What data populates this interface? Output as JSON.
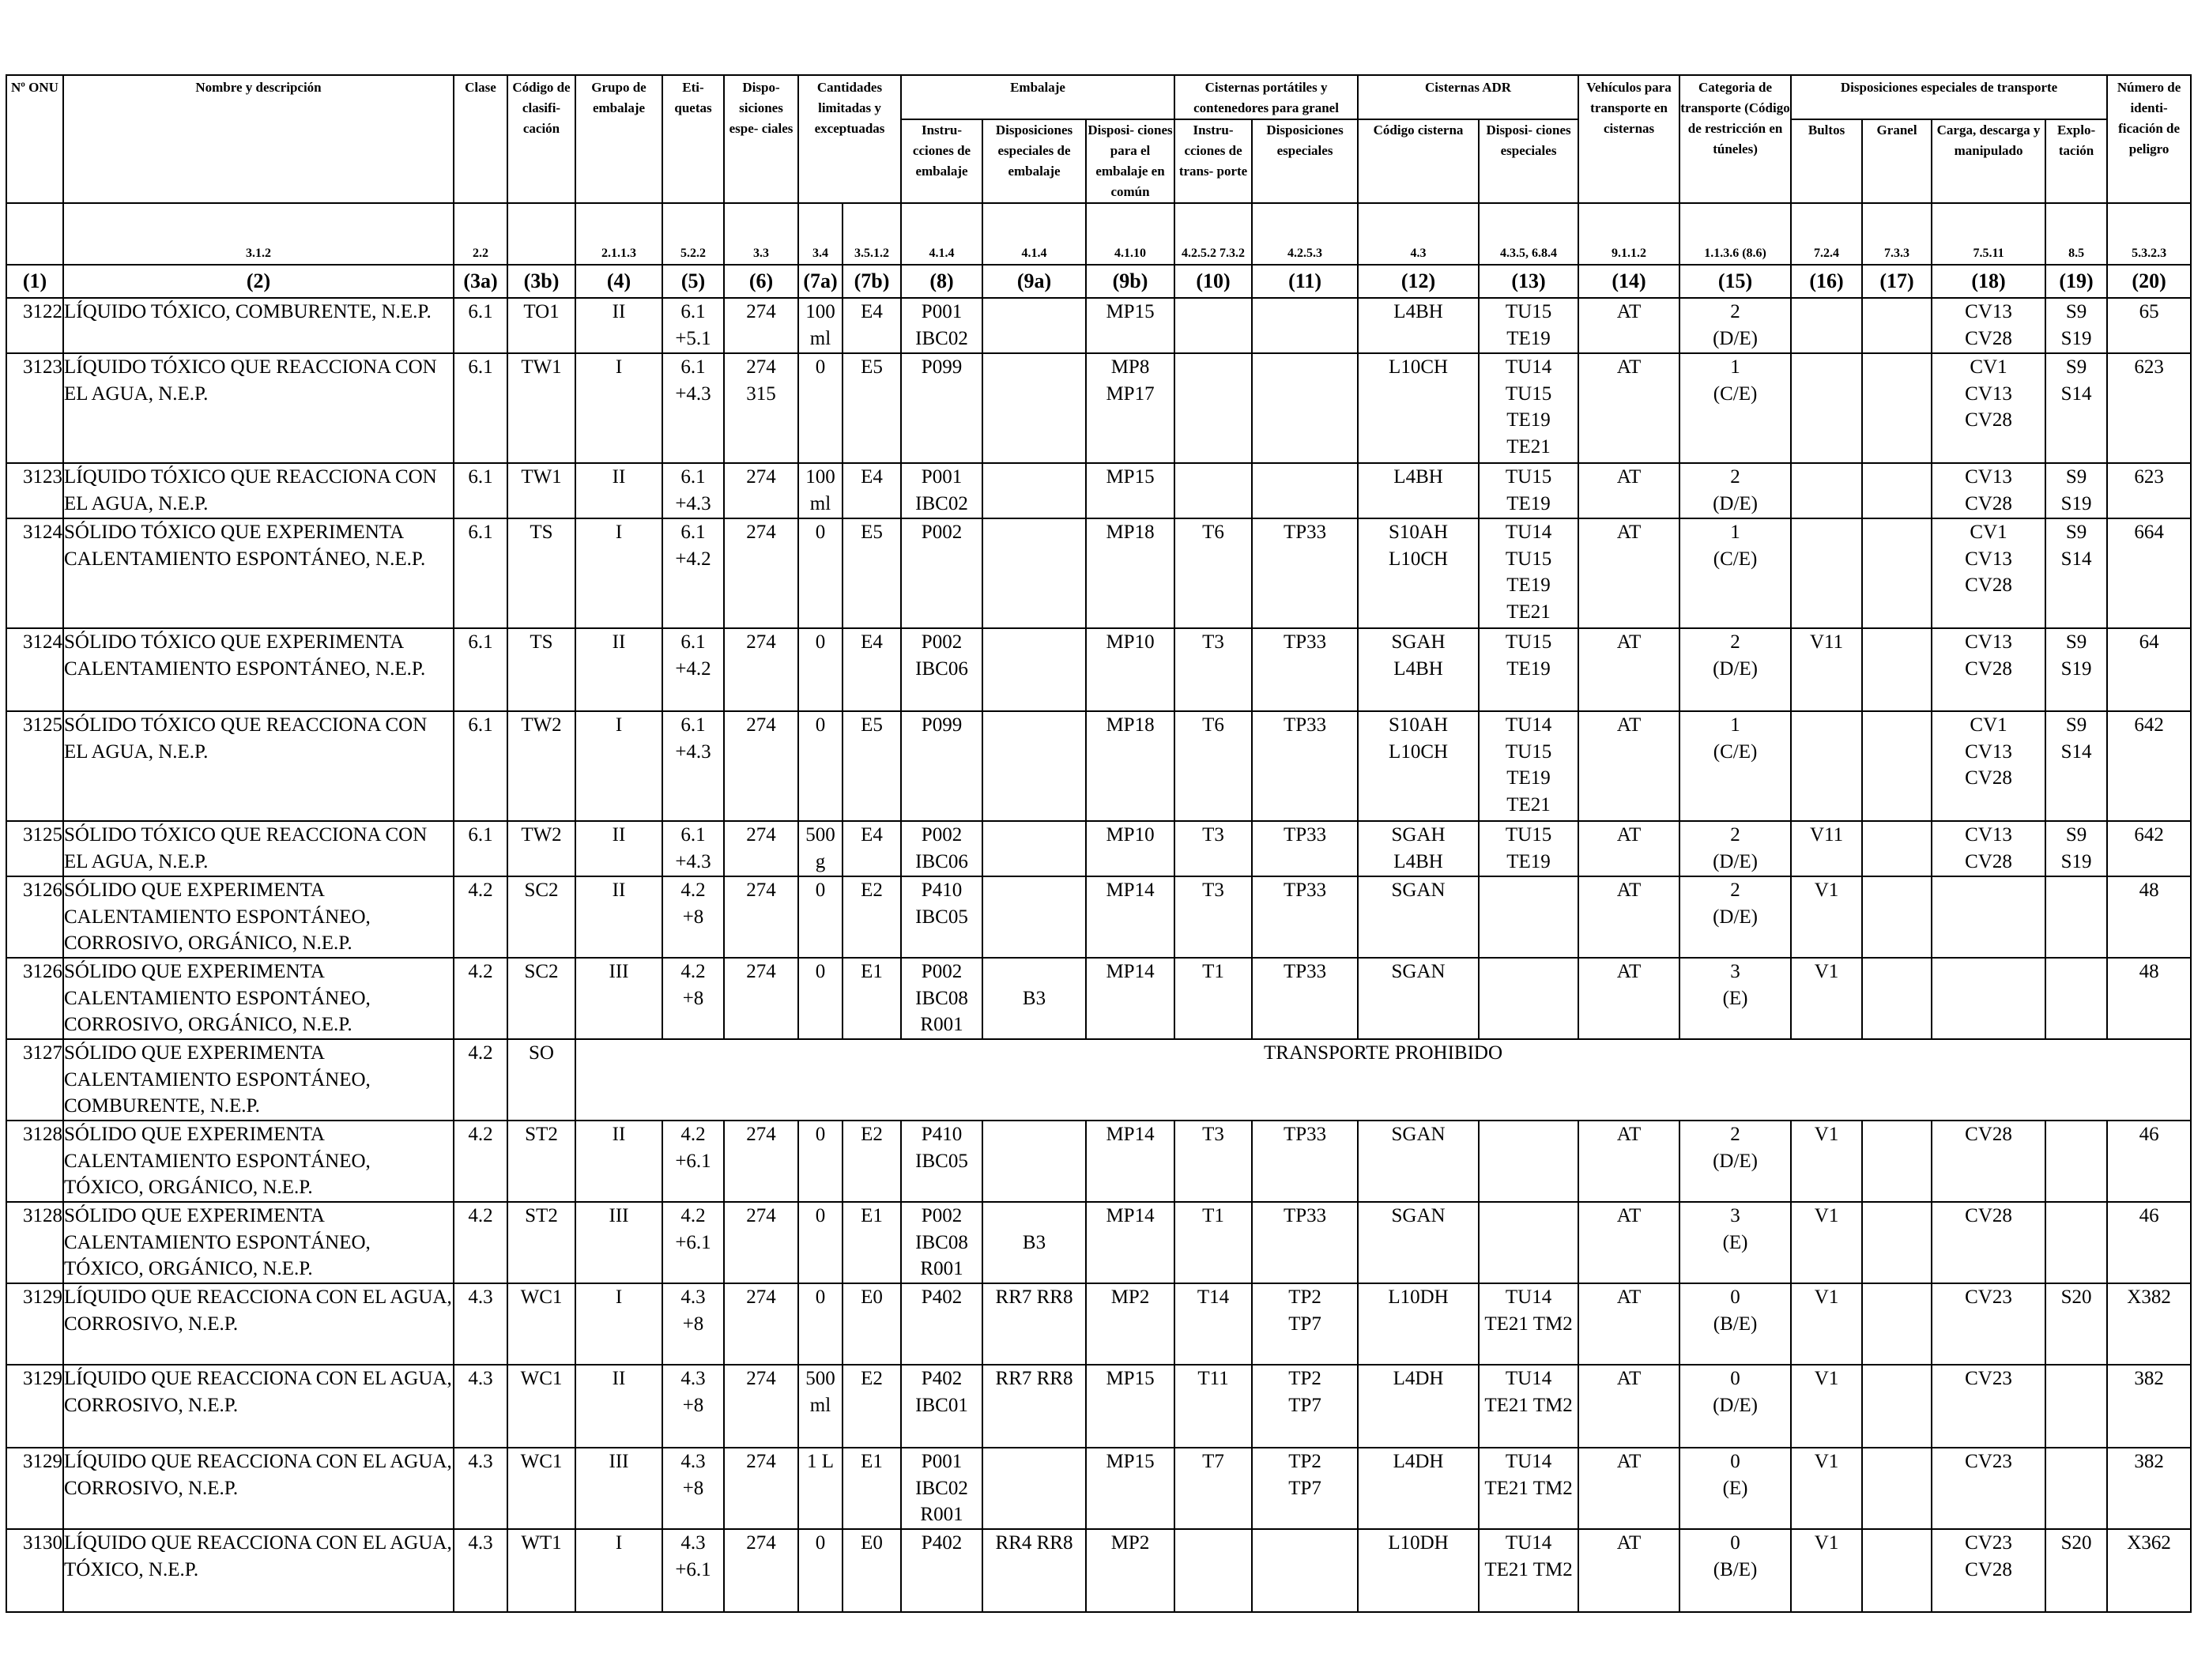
{
  "header": {
    "top": [
      {
        "id": "onu",
        "text": "Nº ONU"
      },
      {
        "id": "name",
        "text": "Nombre y descripción"
      },
      {
        "id": "clase",
        "text": "Clase"
      },
      {
        "id": "codigo",
        "text": "Código de clasifi- cación"
      },
      {
        "id": "grupo",
        "text": "Grupo de embalaje"
      },
      {
        "id": "etiquetas",
        "text": "Eti- quetas"
      },
      {
        "id": "dispos",
        "text": "Dispo- siciones espe- ciales"
      },
      {
        "id": "cantidades",
        "text": "Cantidades limitadas y exceptuadas"
      },
      {
        "id": "embalaje",
        "text": "Embalaje"
      },
      {
        "id": "cisternas_port",
        "text": "Cisternas portátiles y contenedores para granel"
      },
      {
        "id": "cisternas_adr",
        "text": "Cisternas ADR"
      },
      {
        "id": "vehiculos",
        "text": "Vehículos para transporte en cisternas"
      },
      {
        "id": "categoria",
        "text": "Categoria de transporte (Código de restricción en túneles)"
      },
      {
        "id": "dispos_transp",
        "text": "Disposiciones especiales de transporte"
      },
      {
        "id": "numero",
        "text": "Número de identi- ficación de peligro"
      }
    ],
    "sub": [
      {
        "id": "instr_emb",
        "text": "Instru- cciones de embalaje"
      },
      {
        "id": "dispos_emb",
        "text": "Disposiciones especiales de embalaje"
      },
      {
        "id": "emb_comun",
        "text": "Disposi- ciones para el embalaje en común"
      },
      {
        "id": "instr_transp",
        "text": "Instru- cciones de trans- porte"
      },
      {
        "id": "dispos_esp",
        "text": "Disposiciones especiales"
      },
      {
        "id": "cod_cisterna",
        "text": "Código cisterna"
      },
      {
        "id": "dispos_cist",
        "text": "Disposi- ciones especiales"
      },
      {
        "id": "bultos",
        "text": "Bultos"
      },
      {
        "id": "granel",
        "text": "Granel"
      },
      {
        "id": "carga",
        "text": "Carga, descarga y manipulado"
      },
      {
        "id": "explot",
        "text": "Explo- tación"
      }
    ],
    "refs": [
      "",
      "3.1.2",
      "2.2",
      "",
      "2.1.1.3",
      "5.2.2",
      "3.3",
      "3.4",
      "3.5.1.2",
      "4.1.4",
      "4.1.4",
      "4.1.10",
      "4.2.5.2 7.3.2",
      "4.2.5.3",
      "4.3",
      "4.3.5, 6.8.4",
      "9.1.1.2",
      "1.1.3.6 (8.6)",
      "7.2.4",
      "7.3.3",
      "7.5.11",
      "8.5",
      "5.3.2.3"
    ],
    "col_numbers": [
      "(1)",
      "(2)",
      "(3a)",
      "(3b)",
      "(4)",
      "(5)",
      "(6)",
      "(7a)",
      "(7b)",
      "(8)",
      "(9a)",
      "(9b)",
      "(10)",
      "(11)",
      "(12)",
      "(13)",
      "(14)",
      "(15)",
      "(16)",
      "(17)",
      "(18)",
      "(19)",
      "(20)"
    ]
  },
  "rows": [
    {
      "cells": [
        "3122",
        "LÍQUIDO TÓXICO, COMBURENTE, N.E.P.",
        "6.1",
        "TO1",
        "II",
        "6.1 +5.1",
        "274",
        "100 ml",
        "E4",
        "P001 IBC02",
        "",
        "MP15",
        "",
        "",
        "L4BH",
        "TU15 TE19",
        "AT",
        "2 (D/E)",
        "",
        "",
        "CV13 CV28",
        "S9 S19",
        "65"
      ]
    },
    {
      "cells": [
        "3123",
        "LÍQUIDO TÓXICO QUE REACCIONA CON EL AGUA, N.E.P.",
        "6.1",
        "TW1",
        "I",
        "6.1 +4.3",
        "274 315",
        "0",
        "E5",
        "P099",
        "",
        "MP8 MP17",
        "",
        "",
        "L10CH",
        "TU14 TU15 TE19 TE21",
        "AT",
        "1 (C/E)",
        "",
        "",
        "CV1 CV13 CV28",
        "S9 S14",
        "623"
      ]
    },
    {
      "cells": [
        "3123",
        "LÍQUIDO TÓXICO QUE REACCIONA CON EL AGUA, N.E.P.",
        "6.1",
        "TW1",
        "II",
        "6.1 +4.3",
        "274",
        "100 ml",
        "E4",
        "P001 IBC02",
        "",
        "MP15",
        "",
        "",
        "L4BH",
        "TU15 TE19",
        "AT",
        "2 (D/E)",
        "",
        "",
        "CV13 CV28",
        "S9 S19",
        "623"
      ]
    },
    {
      "cells": [
        "3124",
        "SÓLIDO TÓXICO QUE EXPERIMENTA CALENTAMIENTO ESPONTÁNEO, N.E.P.",
        "6.1",
        "TS",
        "I",
        "6.1 +4.2",
        "274",
        "0",
        "E5",
        "P002",
        "",
        "MP18",
        "T6",
        "TP33",
        "S10AH L10CH",
        "TU14 TU15 TE19 TE21",
        "AT",
        "1 (C/E)",
        "",
        "",
        "CV1 CV13 CV28",
        "S9 S14",
        "664"
      ]
    },
    {
      "cells": [
        "3124",
        "SÓLIDO TÓXICO QUE EXPERIMENTA CALENTAMIENTO ESPONTÁNEO, N.E.P.",
        "6.1",
        "TS",
        "II",
        "6.1 +4.2",
        "274",
        "0",
        "E4",
        "P002 IBC06",
        "",
        "MP10",
        "T3",
        "TP33",
        "SGAH L4BH",
        "TU15 TE19",
        "AT",
        "2 (D/E)",
        "V11",
        "",
        "CV13 CV28",
        "S9 S19",
        "64"
      ]
    },
    {
      "cells": [
        "3125",
        "SÓLIDO TÓXICO QUE REACCIONA CON EL AGUA, N.E.P.",
        "6.1",
        "TW2",
        "I",
        "6.1 +4.3",
        "274",
        "0",
        "E5",
        "P099",
        "",
        "MP18",
        "T6",
        "TP33",
        "S10AH L10CH",
        "TU14 TU15 TE19 TE21",
        "AT",
        "1 (C/E)",
        "",
        "",
        "CV1 CV13 CV28",
        "S9 S14",
        "642"
      ]
    },
    {
      "cells": [
        "3125",
        "SÓLIDO TÓXICO QUE REACCIONA CON EL AGUA, N.E.P.",
        "6.1",
        "TW2",
        "II",
        "6.1 +4.3",
        "274",
        "500 g",
        "E4",
        "P002 IBC06",
        "",
        "MP10",
        "T3",
        "TP33",
        "SGAH L4BH",
        "TU15 TE19",
        "AT",
        "2 (D/E)",
        "V11",
        "",
        "CV13 CV28",
        "S9 S19",
        "642"
      ]
    },
    {
      "cells": [
        "3126",
        "SÓLIDO QUE EXPERIMENTA CALENTAMIENTO ESPONTÁNEO, CORROSIVO, ORGÁNICO, N.E.P.",
        "4.2",
        "SC2",
        "II",
        "4.2 +8",
        "274",
        "0",
        "E2",
        "P410 IBC05",
        "",
        "MP14",
        "T3",
        "TP33",
        "SGAN",
        "",
        "AT",
        "2 (D/E)",
        "V1",
        "",
        "",
        "",
        "48"
      ]
    },
    {
      "cells": [
        "3126",
        "SÓLIDO QUE EXPERIMENTA CALENTAMIENTO ESPONTÁNEO, CORROSIVO, ORGÁNICO, N.E.P.",
        "4.2",
        "SC2",
        "III",
        "4.2 +8",
        "274",
        "0",
        "E1",
        "P002 IBC08 R001",
        "\nB3",
        "MP14",
        "T1",
        "TP33",
        "SGAN",
        "",
        "AT",
        "3 (E)",
        "V1",
        "",
        "",
        "",
        "48"
      ]
    },
    {
      "prohibited": true,
      "cells": [
        "3127",
        "SÓLIDO QUE EXPERIMENTA CALENTAMIENTO ESPONTÁNEO, COMBURENTE, N.E.P.",
        "4.2",
        "SO"
      ],
      "prohibited_text": "TRANSPORTE PROHIBIDO"
    },
    {
      "cells": [
        "3128",
        "SÓLIDO QUE EXPERIMENTA CALENTAMIENTO ESPONTÁNEO, TÓXICO, ORGÁNICO, N.E.P.",
        "4.2",
        "ST2",
        "II",
        "4.2 +6.1",
        "274",
        "0",
        "E2",
        "P410 IBC05",
        "",
        "MP14",
        "T3",
        "TP33",
        "SGAN",
        "",
        "AT",
        "2 (D/E)",
        "V1",
        "",
        "CV28",
        "",
        "46"
      ]
    },
    {
      "cells": [
        "3128",
        "SÓLIDO QUE EXPERIMENTA CALENTAMIENTO ESPONTÁNEO, TÓXICO, ORGÁNICO, N.E.P.",
        "4.2",
        "ST2",
        "III",
        "4.2 +6.1",
        "274",
        "0",
        "E1",
        "P002 IBC08 R001",
        "\nB3",
        "MP14",
        "T1",
        "TP33",
        "SGAN",
        "",
        "AT",
        "3 (E)",
        "V1",
        "",
        "CV28",
        "",
        "46"
      ]
    },
    {
      "cells": [
        "3129",
        "LÍQUIDO QUE REACCIONA CON EL AGUA, CORROSIVO, N.E.P.",
        "4.3",
        "WC1",
        "I",
        "4.3 +8",
        "274",
        "0",
        "E0",
        "P402",
        "RR7 RR8",
        "MP2",
        "T14",
        "TP2 TP7",
        "L10DH",
        "TU14 TE21 TM2",
        "AT",
        "0 (B/E)",
        "V1",
        "",
        "CV23",
        "S20",
        "X382"
      ]
    },
    {
      "cells": [
        "3129",
        "LÍQUIDO QUE REACCIONA CON EL AGUA, CORROSIVO, N.E.P.",
        "4.3",
        "WC1",
        "II",
        "4.3 +8",
        "274",
        "500 ml",
        "E2",
        "P402 IBC01",
        "RR7 RR8",
        "MP15",
        "T11",
        "TP2 TP7",
        "L4DH",
        "TU14 TE21 TM2",
        "AT",
        "0 (D/E)",
        "V1",
        "",
        "CV23",
        "",
        "382"
      ]
    },
    {
      "cells": [
        "3129",
        "LÍQUIDO QUE REACCIONA CON EL AGUA, CORROSIVO, N.E.P.",
        "4.3",
        "WC1",
        "III",
        "4.3 +8",
        "274",
        "1 L",
        "E1",
        "P001 IBC02 R001",
        "",
        "MP15",
        "T7",
        "TP2 TP7",
        "L4DH",
        "TU14 TE21 TM2",
        "AT",
        "0 (E)",
        "V1",
        "",
        "CV23",
        "",
        "382"
      ]
    },
    {
      "cells": [
        "3130",
        "LÍQUIDO QUE REACCIONA CON EL AGUA, TÓXICO, N.E.P.",
        "4.3",
        "WT1",
        "I",
        "4.3 +6.1",
        "274",
        "0",
        "E0",
        "P402",
        "RR4 RR8",
        "MP2",
        "",
        "",
        "L10DH",
        "TU14 TE21 TM2",
        "AT",
        "0 (B/E)",
        "V1",
        "",
        "CV23 CV28",
        "S20",
        "X362"
      ]
    }
  ]
}
